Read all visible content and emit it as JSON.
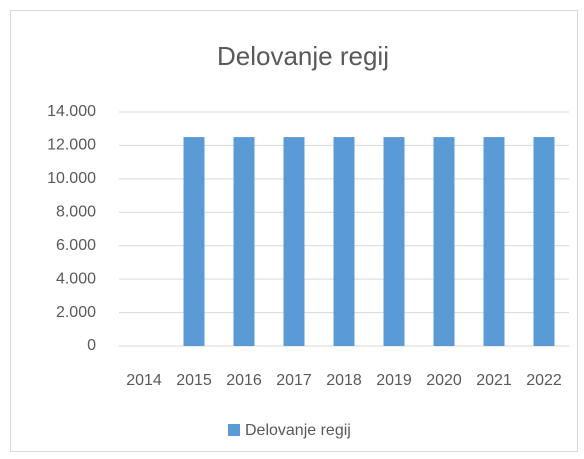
{
  "chart_data": {
    "type": "bar",
    "title": "Delovanje regij",
    "categories": [
      "2014",
      "2015",
      "2016",
      "2017",
      "2018",
      "2019",
      "2020",
      "2021",
      "2022"
    ],
    "series": [
      {
        "name": "Delovanje regij",
        "color": "#5b9bd5",
        "values": [
          0,
          12500,
          12500,
          12500,
          12500,
          12500,
          12500,
          12500,
          12500
        ]
      }
    ],
    "ylim": [
      0,
      14000
    ],
    "yticks": [
      0,
      {
        "value": 2000,
        "label": "2.000"
      },
      {
        "value": 4000,
        "label": "4.000"
      },
      {
        "value": 6000,
        "label": "6.000"
      },
      {
        "value": 8000,
        "label": "8.000"
      },
      {
        "value": 10000,
        "label": "10.000"
      },
      {
        "value": 12000,
        "label": "12.000"
      },
      {
        "value": 14000,
        "label": "14.000"
      }
    ],
    "grid": true,
    "legend": "bottom"
  }
}
